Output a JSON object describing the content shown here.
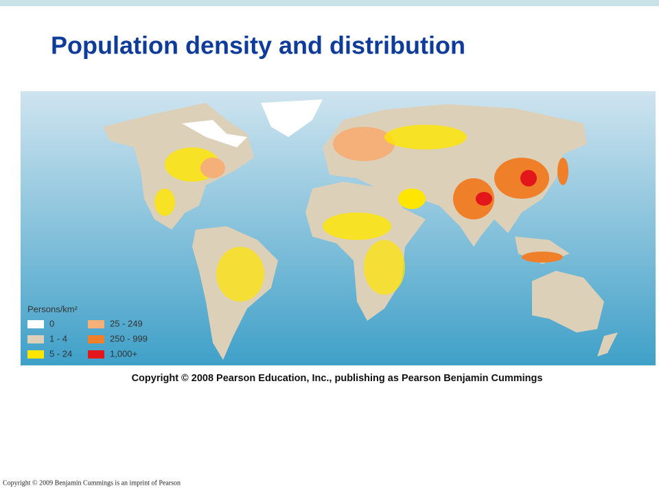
{
  "header": {
    "title": "Population density and distribution"
  },
  "map": {
    "legend": {
      "title": "Persons/km²",
      "items": [
        {
          "label": "0",
          "color": "#ffffff"
        },
        {
          "label": "1 - 4",
          "color": "#ddd0b8"
        },
        {
          "label": "5 - 24",
          "color": "#ffe600"
        },
        {
          "label": "25 - 249",
          "color": "#f5b07a"
        },
        {
          "label": "250 - 999",
          "color": "#f07f2a"
        },
        {
          "label": "1,000+",
          "color": "#e3161b"
        }
      ]
    }
  },
  "caption": "Copyright © 2008 Pearson Education, Inc., publishing as Pearson Benjamin Cummings",
  "footer": "Copyright © 2009 Benjamin Cummings is an imprint of Pearson"
}
